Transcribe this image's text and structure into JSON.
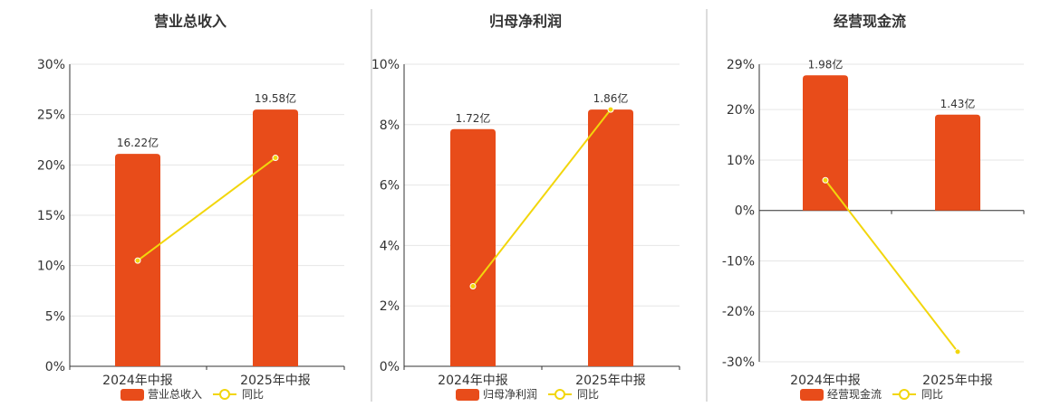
{
  "chart_data": [
    {
      "type": "bar",
      "title": "营业总收入",
      "categories": [
        "2024年中报",
        "2025年中报"
      ],
      "bar_series": {
        "name": "营业总收入",
        "labels": [
          "16.22亿",
          "19.58亿"
        ],
        "values": [
          16.22,
          19.58
        ],
        "color": "#e84c1a"
      },
      "line_series": {
        "name": "同比",
        "values": [
          10.5,
          20.7
        ],
        "color": "#f2d60c"
      },
      "y_ticks": [
        "30%",
        "25%",
        "20%",
        "15%",
        "10%",
        "5%",
        "0%"
      ],
      "ylim": [
        0,
        30
      ],
      "bar_heights_pct": [
        21.1,
        25.5
      ]
    },
    {
      "type": "bar",
      "title": "归母净利润",
      "categories": [
        "2024年中报",
        "2025年中报"
      ],
      "bar_series": {
        "name": "归母净利润",
        "labels": [
          "1.72亿",
          "1.86亿"
        ],
        "values": [
          1.72,
          1.86
        ],
        "color": "#e84c1a"
      },
      "line_series": {
        "name": "同比",
        "values": [
          2.65,
          8.5
        ],
        "color": "#f2d60c"
      },
      "y_ticks": [
        "10%",
        "8%",
        "6%",
        "4%",
        "2%",
        "0%"
      ],
      "ylim": [
        0,
        10
      ],
      "bar_heights_pct": [
        7.85,
        8.5
      ]
    },
    {
      "type": "bar",
      "title": "经营现金流",
      "categories": [
        "2024年中报",
        "2025年中报"
      ],
      "bar_series": {
        "name": "经营现金流",
        "labels": [
          "1.98亿",
          "1.43亿"
        ],
        "values": [
          1.98,
          1.43
        ],
        "color": "#e84c1a"
      },
      "line_series": {
        "name": "同比",
        "values": [
          6.0,
          -28.0
        ],
        "color": "#f2d60c"
      },
      "y_ticks": [
        "29%",
        "20%",
        "10%",
        "0%",
        "-10%",
        "-20%",
        "-30%"
      ],
      "ylim": [
        -30,
        29
      ],
      "bar_heights_pct": [
        26.8,
        19.0
      ]
    }
  ]
}
